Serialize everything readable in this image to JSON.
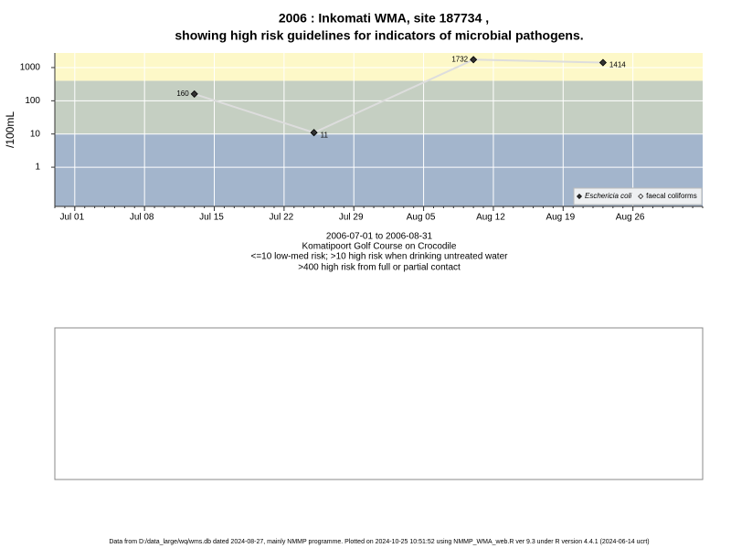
{
  "chart_data": {
    "type": "line",
    "title": [
      "2006 : Inkomati WMA, site 187734 ,",
      "showing high risk guidelines for indicators of microbial pathogens."
    ],
    "y_label": "/100mL",
    "notes": [
      "2006-07-01 to 2006-08-31",
      "Komatipoort Golf Course on Crocodile",
      "<=10 low-med risk; >10 high risk when drinking untreated water",
      ">400 high risk from full or partial contact"
    ],
    "x": [
      "2006-07-13",
      "2006-07-25",
      "2006-08-10",
      "2006-08-23"
    ],
    "series": [
      {
        "name": "Eschericia coli",
        "color": "#333333",
        "values": [
          160,
          11,
          1732,
          1414
        ]
      },
      {
        "name": "faecal coliforms",
        "color": "#ffffff",
        "values": [
          null,
          null,
          null,
          null
        ]
      }
    ],
    "line_color": "#dddddd",
    "log_y": true,
    "ylim": [
      0.066,
      2750
    ],
    "yticks": [
      1,
      10,
      100,
      1000
    ],
    "xlim": [
      "2006-06-29",
      "2006-09-02"
    ],
    "xticks": [
      {
        "value": "2006-07-01",
        "label": "Jul 01"
      },
      {
        "value": "2006-07-08",
        "label": "Jul 08"
      },
      {
        "value": "2006-07-15",
        "label": "Jul 15"
      },
      {
        "value": "2006-07-22",
        "label": "Jul 22"
      },
      {
        "value": "2006-07-29",
        "label": "Jul 29"
      },
      {
        "value": "2006-08-05",
        "label": "Aug 05"
      },
      {
        "value": "2006-08-12",
        "label": "Aug 12"
      },
      {
        "value": "2006-08-19",
        "label": "Aug 19"
      },
      {
        "value": "2006-08-26",
        "label": "Aug 26"
      }
    ],
    "thresholds": [
      10,
      400
    ],
    "band_colors": [
      "#a3b5cc",
      "#c5cfc2",
      "#fdf8c8"
    ],
    "grid": true,
    "legend": "bottom-right"
  },
  "footer": "Data from D:/data_large/wq/wms.db dated 2024-08-27, mainly NMMP programme. Plotted on 2024-10-25 10:51:52 using NMMP_WMA_web.R ver 9.3 under R version 4.4.1 (2024-06-14 ucrt)"
}
